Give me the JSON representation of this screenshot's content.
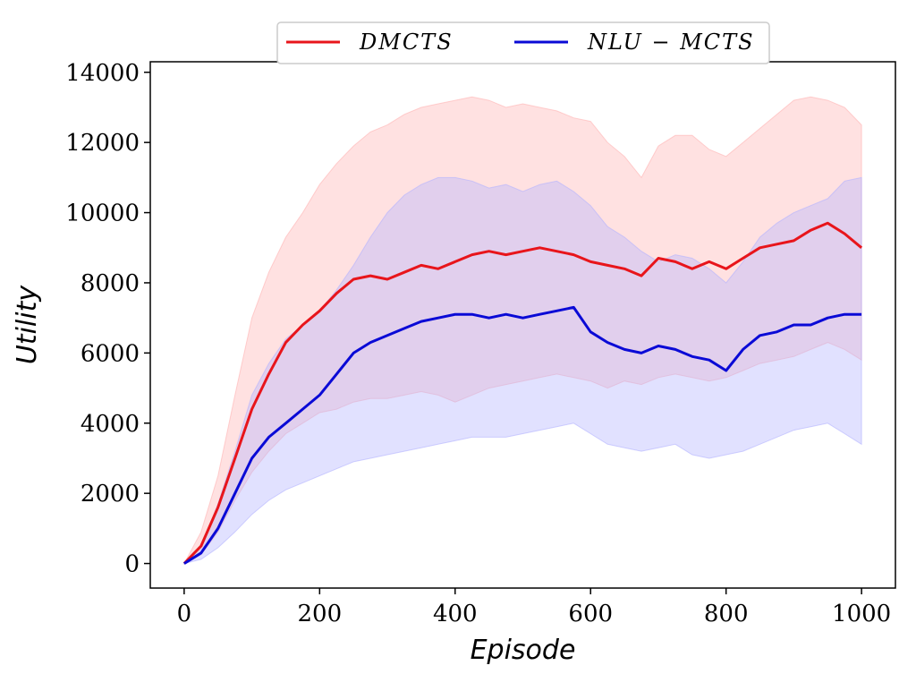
{
  "chart_data": {
    "type": "line",
    "xlabel": "Episode",
    "ylabel": "Utility",
    "xlim": [
      -50,
      1050
    ],
    "ylim": [
      -700,
      14300
    ],
    "x_ticks": [
      0,
      200,
      400,
      600,
      800,
      1000
    ],
    "y_ticks": [
      0,
      2000,
      4000,
      6000,
      8000,
      10000,
      12000,
      14000
    ],
    "grid": false,
    "legend_position": "top-center, above plot",
    "x": [
      0,
      25,
      50,
      75,
      100,
      125,
      150,
      175,
      200,
      225,
      250,
      275,
      300,
      325,
      350,
      375,
      400,
      425,
      450,
      475,
      500,
      525,
      550,
      575,
      600,
      625,
      650,
      675,
      700,
      725,
      750,
      775,
      800,
      825,
      850,
      875,
      900,
      925,
      950,
      975,
      1000
    ],
    "series": [
      {
        "name": "DMCTS",
        "color": "#e8151b",
        "band_color": "#ffb3b3",
        "values": [
          0,
          500,
          1600,
          3000,
          4400,
          5400,
          6300,
          6800,
          7200,
          7700,
          8100,
          8200,
          8100,
          8300,
          8500,
          8400,
          8600,
          8800,
          8900,
          8800,
          8900,
          9000,
          8900,
          8800,
          8600,
          8500,
          8400,
          8200,
          8700,
          8600,
          8400,
          8600,
          8400,
          8700,
          9000,
          9100,
          9200,
          9500,
          9700,
          9400,
          9000
        ],
        "lower": [
          0,
          250,
          900,
          1800,
          2600,
          3200,
          3700,
          4000,
          4300,
          4400,
          4600,
          4700,
          4700,
          4800,
          4900,
          4800,
          4600,
          4800,
          5000,
          5100,
          5200,
          5300,
          5400,
          5300,
          5200,
          5000,
          5200,
          5100,
          5300,
          5400,
          5300,
          5200,
          5300,
          5500,
          5700,
          5800,
          5900,
          6100,
          6300,
          6100,
          5800
        ],
        "upper": [
          0,
          900,
          2500,
          4800,
          7000,
          8300,
          9300,
          10000,
          10800,
          11400,
          11900,
          12300,
          12500,
          12800,
          13000,
          13100,
          13200,
          13300,
          13200,
          13000,
          13100,
          13000,
          12900,
          12700,
          12600,
          12000,
          11600,
          11000,
          11900,
          12200,
          12200,
          11800,
          11600,
          12000,
          12400,
          12800,
          13200,
          13300,
          13200,
          13000,
          12500
        ]
      },
      {
        "name": "NLU − MCTS",
        "color": "#0a0ad6",
        "band_color": "#b3b3ff",
        "values": [
          0,
          300,
          1000,
          2000,
          3000,
          3600,
          4000,
          4400,
          4800,
          5400,
          6000,
          6300,
          6500,
          6700,
          6900,
          7000,
          7100,
          7100,
          7000,
          7100,
          7000,
          7100,
          7200,
          7300,
          6600,
          6300,
          6100,
          6000,
          6200,
          6100,
          5900,
          5800,
          5500,
          6100,
          6500,
          6600,
          6800,
          6800,
          7000,
          7100,
          7100
        ],
        "lower": [
          0,
          120,
          450,
          900,
          1400,
          1800,
          2100,
          2300,
          2500,
          2700,
          2900,
          3000,
          3100,
          3200,
          3300,
          3400,
          3500,
          3600,
          3600,
          3600,
          3700,
          3800,
          3900,
          4000,
          3700,
          3400,
          3300,
          3200,
          3300,
          3400,
          3100,
          3000,
          3100,
          3200,
          3400,
          3600,
          3800,
          3900,
          4000,
          3700,
          3400
        ],
        "upper": [
          0,
          500,
          1700,
          3200,
          4800,
          5700,
          6400,
          6800,
          7200,
          7800,
          8500,
          9300,
          10000,
          10500,
          10800,
          11000,
          11000,
          10900,
          10700,
          10800,
          10600,
          10800,
          10900,
          10600,
          10200,
          9600,
          9300,
          8900,
          8600,
          8800,
          8700,
          8400,
          8000,
          8600,
          9300,
          9700,
          10000,
          10200,
          10400,
          10900,
          11000
        ]
      }
    ]
  }
}
